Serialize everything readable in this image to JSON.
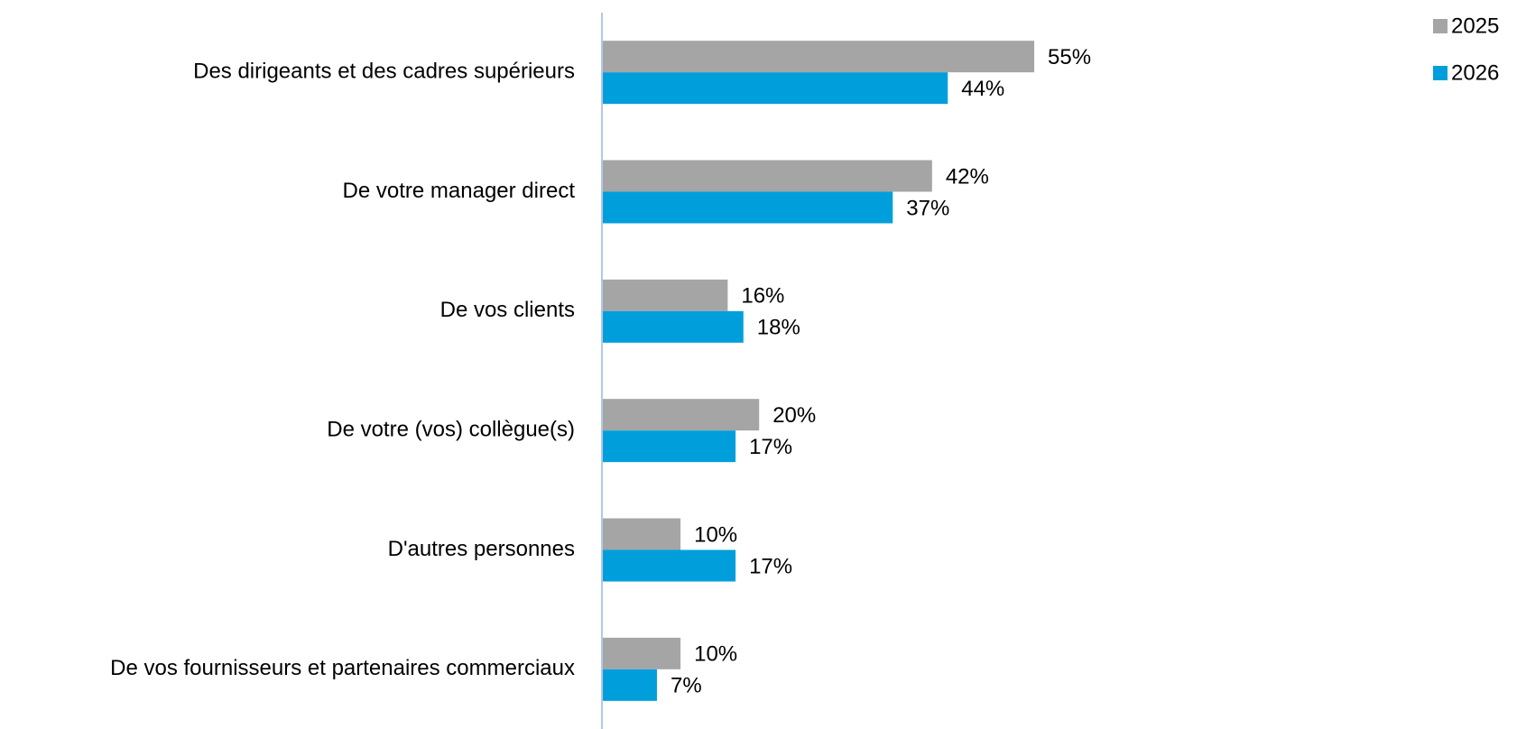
{
  "chart_data": {
    "type": "bar",
    "orientation": "horizontal",
    "categories": [
      "Des dirigeants et des cadres supérieurs",
      "De votre manager direct",
      "De vos clients",
      "De votre (vos) collègue(s)",
      "D'autres personnes",
      "De vos fournisseurs et partenaires commerciaux"
    ],
    "series": [
      {
        "name": "2025",
        "color": "#a5a5a5",
        "values": [
          55,
          42,
          16,
          20,
          10,
          10
        ],
        "value_labels": [
          "55%",
          "42%",
          "16%",
          "20%",
          "10%",
          "10%"
        ]
      },
      {
        "name": "2026",
        "color": "#009fdb",
        "values": [
          44,
          37,
          18,
          17,
          17,
          7
        ],
        "value_labels": [
          "44%",
          "37%",
          "18%",
          "17%",
          "17%",
          "7%"
        ]
      }
    ],
    "xlim": [
      0,
      100
    ],
    "legend": "top-right"
  }
}
